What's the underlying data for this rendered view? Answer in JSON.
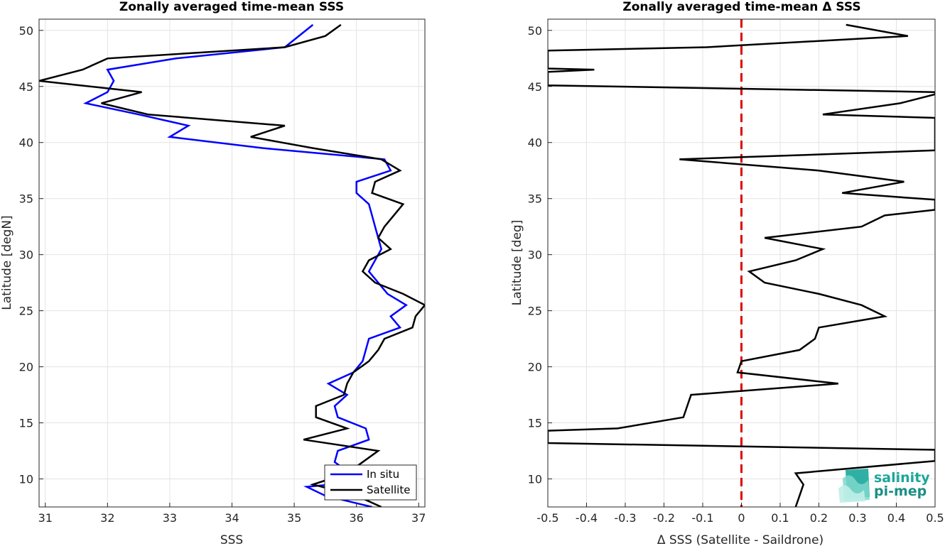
{
  "chart_data": [
    {
      "type": "line",
      "title": "Zonally averaged time-mean SSS",
      "xlabel": "SSS",
      "ylabel": "Latitude [degN]",
      "xlim": [
        30.9,
        37.1
      ],
      "ylim": [
        7.5,
        51
      ],
      "xticks": [
        31,
        32,
        33,
        34,
        35,
        36,
        37
      ],
      "yticks": [
        10,
        15,
        20,
        25,
        30,
        35,
        40,
        45,
        50
      ],
      "grid": true,
      "legend_position": "bottom-right",
      "series": [
        {
          "name": "In situ",
          "color": "#0000ff",
          "points": [
            [
              35.3,
              50.5
            ],
            [
              34.85,
              48.5
            ],
            [
              33.1,
              47.5
            ],
            [
              32.0,
              46.5
            ],
            [
              32.1,
              45.5
            ],
            [
              32.0,
              44.5
            ],
            [
              31.65,
              43.5
            ],
            [
              32.5,
              42.5
            ],
            [
              33.3,
              41.5
            ],
            [
              33.0,
              40.5
            ],
            [
              34.5,
              39.5
            ],
            [
              36.45,
              38.5
            ],
            [
              36.55,
              37.5
            ],
            [
              36.0,
              36.5
            ],
            [
              36.0,
              35.5
            ],
            [
              36.2,
              34.5
            ],
            [
              36.25,
              33.5
            ],
            [
              36.3,
              32.5
            ],
            [
              36.35,
              31.5
            ],
            [
              36.4,
              30.5
            ],
            [
              36.3,
              29.5
            ],
            [
              36.2,
              28.5
            ],
            [
              36.35,
              27.5
            ],
            [
              36.5,
              26.5
            ],
            [
              36.8,
              25.5
            ],
            [
              36.55,
              24.5
            ],
            [
              36.7,
              23.5
            ],
            [
              36.2,
              22.5
            ],
            [
              36.15,
              21.5
            ],
            [
              36.1,
              20.5
            ],
            [
              35.95,
              19.5
            ],
            [
              35.55,
              18.5
            ],
            [
              35.85,
              17.5
            ],
            [
              35.65,
              16.5
            ],
            [
              35.7,
              15.5
            ],
            [
              36.15,
              14.5
            ],
            [
              36.2,
              13.5
            ],
            [
              35.7,
              12.5
            ],
            [
              35.65,
              11.5
            ],
            [
              35.9,
              10.5
            ],
            [
              35.6,
              9.5
            ],
            [
              35.2,
              9.3
            ],
            [
              35.5,
              8.5
            ],
            [
              36.25,
              7.5
            ]
          ]
        },
        {
          "name": "Satellite",
          "color": "#000000",
          "points": [
            [
              35.75,
              50.5
            ],
            [
              35.5,
              49.5
            ],
            [
              34.85,
              48.5
            ],
            [
              32.0,
              47.5
            ],
            [
              31.6,
              46.5
            ],
            [
              30.9,
              45.5
            ],
            [
              32.55,
              44.5
            ],
            [
              31.9,
              43.5
            ],
            [
              32.65,
              42.5
            ],
            [
              34.85,
              41.5
            ],
            [
              34.3,
              40.5
            ],
            [
              35.3,
              39.5
            ],
            [
              36.4,
              38.5
            ],
            [
              36.7,
              37.5
            ],
            [
              36.3,
              36.5
            ],
            [
              36.25,
              35.5
            ],
            [
              36.75,
              34.5
            ],
            [
              36.6,
              33.5
            ],
            [
              36.45,
              32.5
            ],
            [
              36.35,
              31.5
            ],
            [
              36.55,
              30.5
            ],
            [
              36.2,
              29.5
            ],
            [
              36.1,
              28.5
            ],
            [
              36.3,
              27.5
            ],
            [
              36.75,
              26.5
            ],
            [
              37.1,
              25.5
            ],
            [
              36.95,
              24.5
            ],
            [
              36.9,
              23.5
            ],
            [
              36.45,
              22.5
            ],
            [
              36.35,
              21.5
            ],
            [
              36.2,
              20.5
            ],
            [
              35.95,
              19.5
            ],
            [
              35.85,
              18.5
            ],
            [
              35.8,
              17.5
            ],
            [
              35.35,
              16.5
            ],
            [
              35.35,
              15.5
            ],
            [
              35.85,
              14.5
            ],
            [
              35.15,
              13.5
            ],
            [
              36.35,
              12.5
            ],
            [
              36.1,
              11.5
            ],
            [
              35.85,
              10.5
            ],
            [
              35.3,
              9.5
            ],
            [
              36.0,
              8.5
            ],
            [
              36.4,
              7.5
            ]
          ]
        }
      ]
    },
    {
      "type": "line",
      "title": "Zonally averaged time-mean Δ SSS",
      "xlabel": "Δ SSS (Satellite - Saildrone)",
      "ylabel": "Latitude [deg]",
      "xlim": [
        -0.5,
        0.5
      ],
      "ylim": [
        7.5,
        51
      ],
      "xticks": [
        -0.5,
        -0.4,
        -0.3,
        -0.2,
        -0.1,
        0,
        0.1,
        0.2,
        0.3,
        0.4,
        0.5
      ],
      "xticklabels": [
        "-0.5",
        "-0.4",
        "-0.3",
        "-0.2",
        "-0.1",
        "0",
        "0.1",
        "0.2",
        "0.3",
        "0.4",
        "0.5"
      ],
      "yticks": [
        10,
        15,
        20,
        25,
        30,
        35,
        40,
        45,
        50
      ],
      "grid": true,
      "reference_line": {
        "x": 0,
        "color": "#e00000",
        "style": "dashed"
      },
      "series": [
        {
          "color": "#000000",
          "points": [
            [
              0.27,
              50.5
            ],
            [
              0.43,
              49.5
            ],
            [
              -0.09,
              48.5
            ],
            [
              -0.5,
              48.2
            ],
            [
              -0.5,
              46.6
            ],
            [
              -0.38,
              46.5
            ],
            [
              -0.5,
              46.3
            ],
            [
              -0.5,
              45.1
            ],
            [
              0.5,
              44.5
            ],
            [
              0.5,
              44.3
            ],
            [
              0.41,
              43.5
            ],
            [
              0.21,
              42.5
            ],
            [
              0.5,
              42.2
            ],
            [
              0.5,
              39.3
            ],
            [
              -0.16,
              38.5
            ],
            [
              0.2,
              37.5
            ],
            [
              0.42,
              36.5
            ],
            [
              0.26,
              35.5
            ],
            [
              0.5,
              34.9
            ],
            [
              0.5,
              34.0
            ],
            [
              0.37,
              33.5
            ],
            [
              0.31,
              32.5
            ],
            [
              0.06,
              31.5
            ],
            [
              0.21,
              30.5
            ],
            [
              0.14,
              29.5
            ],
            [
              0.02,
              28.5
            ],
            [
              0.06,
              27.5
            ],
            [
              0.2,
              26.5
            ],
            [
              0.31,
              25.5
            ],
            [
              0.37,
              24.5
            ],
            [
              0.2,
              23.5
            ],
            [
              0.19,
              22.5
            ],
            [
              0.15,
              21.5
            ],
            [
              0.0,
              20.5
            ],
            [
              -0.01,
              19.5
            ],
            [
              0.25,
              18.5
            ],
            [
              -0.13,
              17.5
            ],
            [
              -0.14,
              16.5
            ],
            [
              -0.15,
              15.5
            ],
            [
              -0.32,
              14.5
            ],
            [
              -0.5,
              14.3
            ],
            [
              -0.5,
              13.2
            ],
            [
              0.5,
              12.6
            ],
            [
              0.5,
              11.6
            ],
            [
              0.14,
              10.5
            ],
            [
              0.16,
              9.5
            ],
            [
              0.15,
              8.5
            ],
            [
              0.14,
              7.5
            ]
          ]
        }
      ]
    }
  ],
  "logo": {
    "line1": "salinity",
    "line2": "pi-mep"
  }
}
